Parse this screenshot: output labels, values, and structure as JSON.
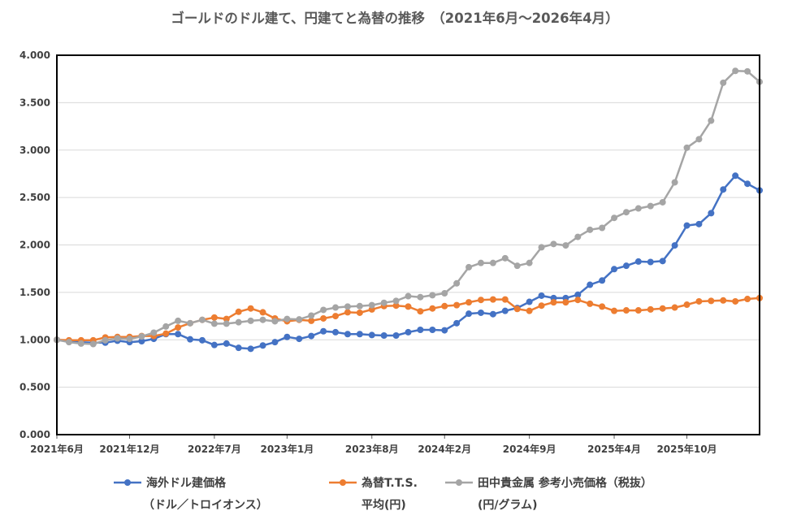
{
  "chart_data": {
    "type": "line",
    "title": "ゴールドのドル建て、円建てと為替の推移　（2021年6月～2026年4月）",
    "xlabel": "",
    "ylabel": "",
    "ylim": [
      0,
      4
    ],
    "ytick_labels": [
      "0.000",
      "0.500",
      "1.000",
      "1.500",
      "2.000",
      "2.500",
      "3.000",
      "3.500",
      "4.000"
    ],
    "x": [
      "2021-06",
      "2021-07",
      "2021-08",
      "2021-09",
      "2021-10",
      "2021-11",
      "2021-12",
      "2022-01",
      "2022-02",
      "2022-03",
      "2022-04",
      "2022-05",
      "2022-06",
      "2022-07",
      "2022-08",
      "2022-09",
      "2022-10",
      "2022-11",
      "2022-12",
      "2023-01",
      "2023-02",
      "2023-03",
      "2023-04",
      "2023-05",
      "2023-06",
      "2023-07",
      "2023-08",
      "2023-09",
      "2023-10",
      "2023-11",
      "2023-12",
      "2024-01",
      "2024-02",
      "2024-03",
      "2024-04",
      "2024-05",
      "2024-06",
      "2024-07",
      "2024-08",
      "2024-09",
      "2024-10",
      "2024-11",
      "2024-12",
      "2025-01",
      "2025-02",
      "2025-03",
      "2025-04",
      "2025-05",
      "2025-06",
      "2025-07",
      "2025-08",
      "2025-09",
      "2025-10",
      "2025-11",
      "2025-12",
      "2026-01",
      "2026-02",
      "2026-03",
      "2026-04"
    ],
    "x_tick_labels": [
      {
        "index": 0,
        "label": "2021年6月"
      },
      {
        "index": 6,
        "label": "2021年12月"
      },
      {
        "index": 13,
        "label": "2022年7月"
      },
      {
        "index": 19,
        "label": "2023年1月"
      },
      {
        "index": 26,
        "label": "2023年8月"
      },
      {
        "index": 32,
        "label": "2024年2月"
      },
      {
        "index": 39,
        "label": "2024年9月"
      },
      {
        "index": 46,
        "label": "2025年4月"
      },
      {
        "index": 52,
        "label": "2025年10月"
      }
    ],
    "grid": {
      "horizontal": true,
      "vertical": false
    },
    "legend_position": "bottom",
    "series": [
      {
        "name": "海外ドル建価格",
        "name_line2": "（ドル／トロイオンス）",
        "color": "#4472C4",
        "values": [
          1.0,
          0.985,
          0.975,
          0.97,
          0.97,
          0.99,
          0.975,
          0.985,
          1.01,
          1.06,
          1.06,
          1.005,
          0.995,
          0.945,
          0.96,
          0.915,
          0.905,
          0.94,
          0.975,
          1.03,
          1.01,
          1.04,
          1.09,
          1.08,
          1.06,
          1.06,
          1.05,
          1.045,
          1.045,
          1.08,
          1.105,
          1.105,
          1.1,
          1.175,
          1.275,
          1.285,
          1.27,
          1.305,
          1.335,
          1.4,
          1.465,
          1.44,
          1.44,
          1.475,
          1.58,
          1.625,
          1.745,
          1.78,
          1.825,
          1.82,
          1.83,
          1.995,
          2.205,
          2.22,
          2.335,
          2.585,
          2.73,
          2.645,
          2.575
        ]
      },
      {
        "name": "為替T.T.S.",
        "name_line2": "平均(円)",
        "color": "#ED7D31",
        "values": [
          1.0,
          0.995,
          0.995,
          0.995,
          1.025,
          1.03,
          1.03,
          1.04,
          1.04,
          1.065,
          1.13,
          1.175,
          1.21,
          1.235,
          1.22,
          1.295,
          1.33,
          1.29,
          1.225,
          1.195,
          1.21,
          1.2,
          1.225,
          1.25,
          1.29,
          1.285,
          1.32,
          1.355,
          1.36,
          1.35,
          1.3,
          1.33,
          1.355,
          1.365,
          1.395,
          1.42,
          1.425,
          1.425,
          1.325,
          1.305,
          1.36,
          1.395,
          1.395,
          1.42,
          1.38,
          1.35,
          1.305,
          1.31,
          1.31,
          1.32,
          1.33,
          1.34,
          1.37,
          1.405,
          1.41,
          1.415,
          1.405,
          1.43,
          1.44
        ]
      },
      {
        "name": "田中貴金属 参考小売価格（税抜）",
        "name_line2": "(円/グラム)",
        "color": "#A5A5A5",
        "values": [
          1.0,
          0.975,
          0.96,
          0.955,
          0.995,
          1.015,
          1.01,
          1.035,
          1.075,
          1.14,
          1.2,
          1.175,
          1.21,
          1.17,
          1.17,
          1.185,
          1.2,
          1.21,
          1.195,
          1.22,
          1.215,
          1.255,
          1.315,
          1.34,
          1.35,
          1.355,
          1.365,
          1.39,
          1.41,
          1.46,
          1.45,
          1.47,
          1.49,
          1.595,
          1.765,
          1.81,
          1.81,
          1.86,
          1.78,
          1.81,
          1.975,
          2.01,
          1.995,
          2.085,
          2.16,
          2.18,
          2.285,
          2.345,
          2.385,
          2.41,
          2.45,
          2.66,
          3.025,
          3.115,
          3.31,
          3.71,
          3.835,
          3.83,
          3.72
        ]
      }
    ]
  }
}
